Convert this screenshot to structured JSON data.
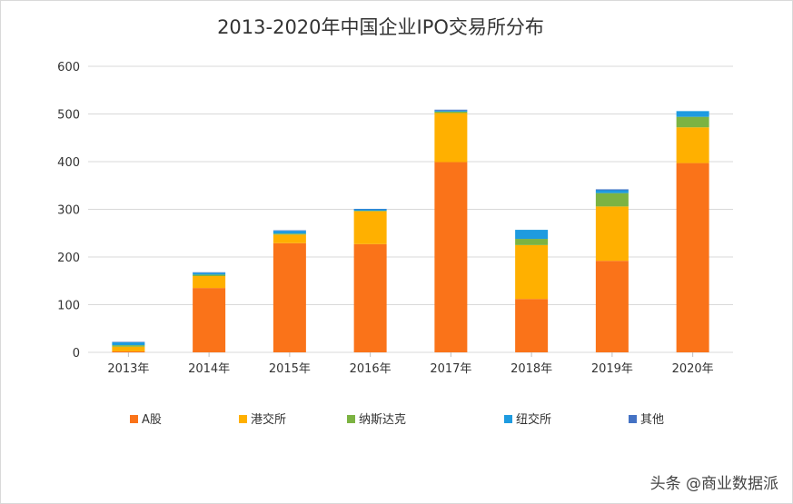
{
  "chart_data": {
    "type": "bar",
    "stacked": true,
    "title": "2013-2020年中国企业IPO交易所分布",
    "xlabel": "",
    "ylabel": "",
    "ylim": [
      0,
      600
    ],
    "yticks": [
      0,
      100,
      200,
      300,
      400,
      500,
      600
    ],
    "grid": true,
    "legend_position": "bottom",
    "categories": [
      "2013年",
      "2014年",
      "2015年",
      "2016年",
      "2017年",
      "2018年",
      "2019年",
      "2020年"
    ],
    "series": [
      {
        "name": "A股",
        "color": "#FA7319",
        "values": [
          2,
          135,
          229,
          227,
          399,
          112,
          192,
          397
        ]
      },
      {
        "name": "港交所",
        "color": "#FFB000",
        "values": [
          10,
          25,
          18,
          69,
          103,
          113,
          114,
          75
        ]
      },
      {
        "name": "纳斯达克",
        "color": "#7CB342",
        "values": [
          3,
          3,
          2,
          1,
          3,
          13,
          28,
          22
        ]
      },
      {
        "name": "纽交所",
        "color": "#1E9BE0",
        "values": [
          6,
          4,
          6,
          3,
          2,
          19,
          6,
          12
        ]
      },
      {
        "name": "其他",
        "color": "#4472C4",
        "values": [
          1,
          1,
          1,
          1,
          2,
          0,
          2,
          0
        ]
      }
    ]
  },
  "watermark": "头条 @商业数据派"
}
